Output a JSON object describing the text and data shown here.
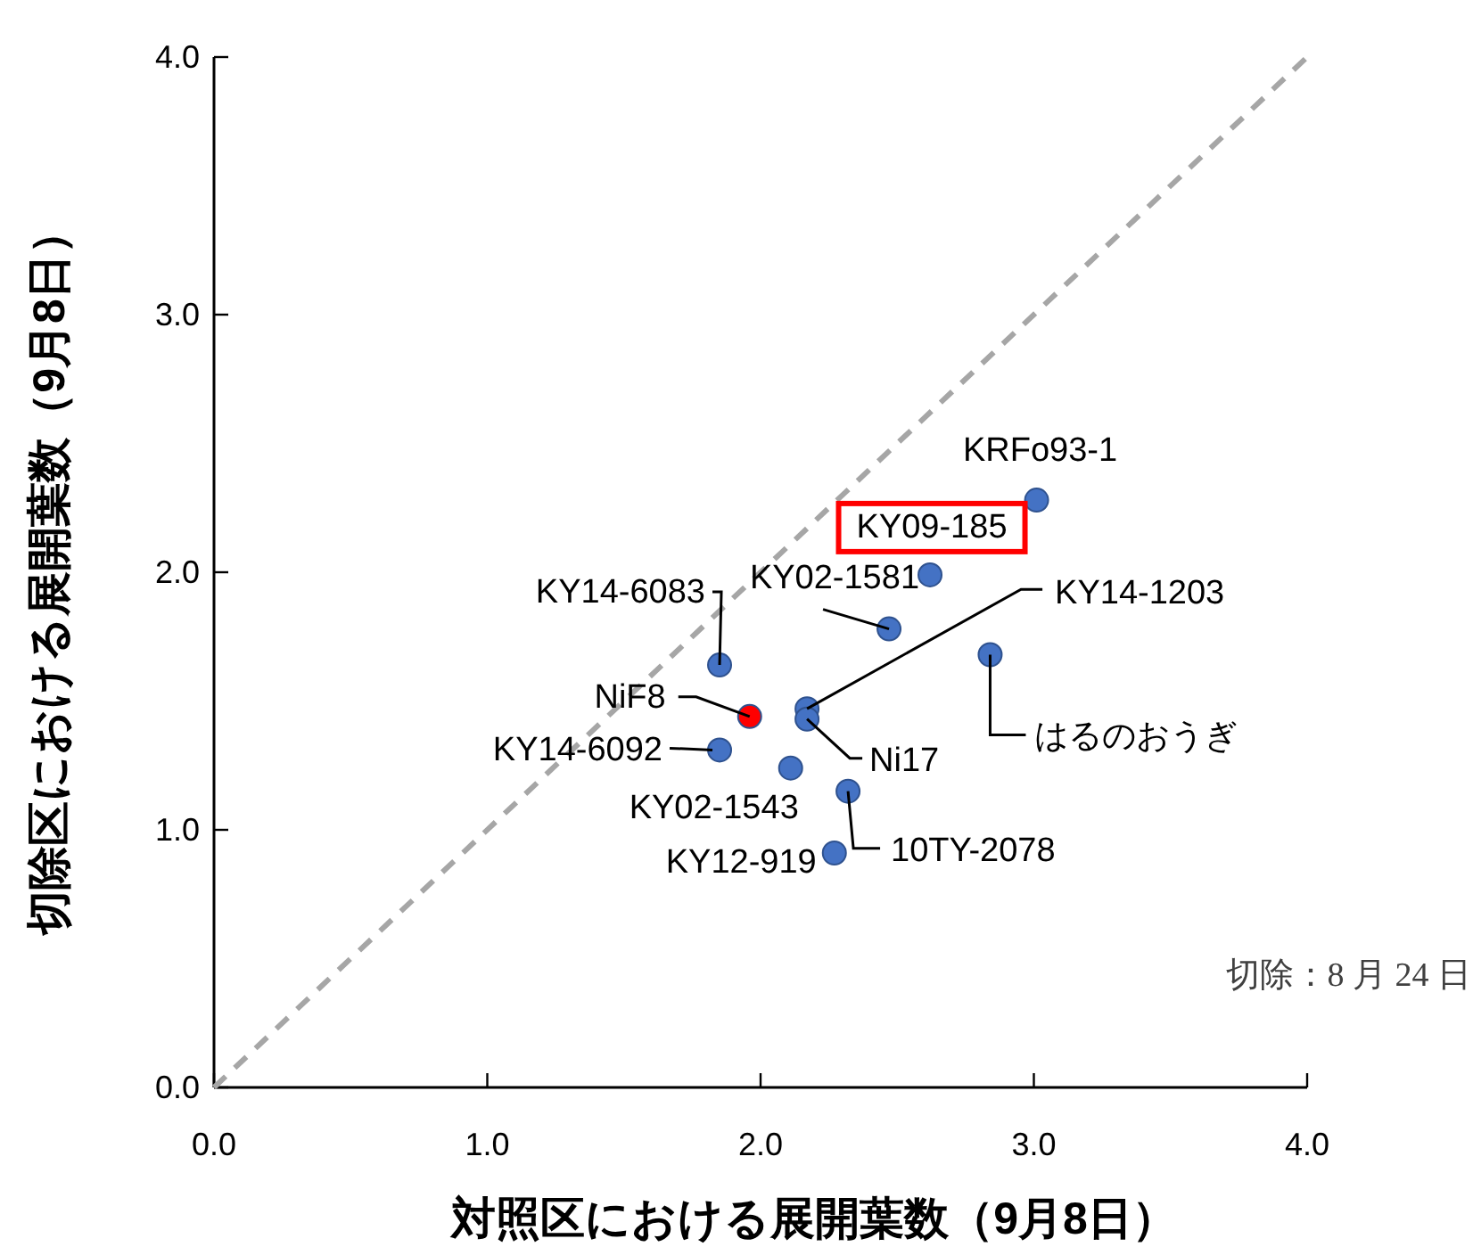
{
  "chart_data": {
    "type": "scatter",
    "xlabel": "対照区における展開葉数（9月8日）",
    "ylabel": "切除区における展開葉数（9月8日）",
    "xlim": [
      0,
      4
    ],
    "ylim": [
      0,
      4
    ],
    "xticks": [
      {
        "value": 0,
        "label": "0.0"
      },
      {
        "value": 1,
        "label": "1.0"
      },
      {
        "value": 2,
        "label": "2.0"
      },
      {
        "value": 3,
        "label": "3.0"
      },
      {
        "value": 4,
        "label": "4.0"
      }
    ],
    "yticks": [
      {
        "value": 0,
        "label": "0.0"
      },
      {
        "value": 1,
        "label": "1.0"
      },
      {
        "value": 2,
        "label": "2.0"
      },
      {
        "value": 3,
        "label": "3.0"
      },
      {
        "value": 4,
        "label": "4.0"
      }
    ],
    "grid": false,
    "marker": "circle",
    "series": [
      {
        "type": "line",
        "color": "#a6a6a6",
        "line_style": "dashed",
        "marker": "none",
        "x": [
          0,
          4
        ],
        "values": [
          0,
          4
        ]
      },
      {
        "type": "scatter",
        "x": [
          3.01,
          2.62,
          2.47,
          2.17,
          2.17,
          2.84,
          1.85,
          1.96,
          1.85,
          2.11,
          2.32,
          2.27
        ],
        "values": [
          2.28,
          1.99,
          1.78,
          1.47,
          1.43,
          1.68,
          1.64,
          1.44,
          1.31,
          1.24,
          1.15,
          0.91
        ],
        "colors": [
          "#4472c4",
          "#4472c4",
          "#4472c4",
          "#4472c4",
          "#4472c4",
          "#4472c4",
          "#4472c4",
          "#ff0000",
          "#4472c4",
          "#4472c4",
          "#4472c4",
          "#4472c4"
        ]
      }
    ],
    "annotations": [
      {
        "text": "KRFo93-1",
        "x": 3.01,
        "y": 2.28
      },
      {
        "text": "KY09-185",
        "x": 2.62,
        "y": 1.99
      },
      {
        "text": "KY02-1581",
        "x": 2.47,
        "y": 1.78
      },
      {
        "text": "KY14-1203",
        "x": 2.17,
        "y": 1.47
      },
      {
        "text": "Ni17",
        "x": 2.17,
        "y": 1.43
      },
      {
        "text": "はるのおうぎ",
        "x": 2.84,
        "y": 1.68
      },
      {
        "text": "KY14-6083",
        "x": 1.85,
        "y": 1.64
      },
      {
        "text": "NiF8",
        "x": 1.96,
        "y": 1.44
      },
      {
        "text": "KY14-6092",
        "x": 1.85,
        "y": 1.31
      },
      {
        "text": "KY02-1543",
        "x": 2.11,
        "y": 1.24
      },
      {
        "text": "10TY-2078",
        "x": 2.32,
        "y": 1.15
      },
      {
        "text": "KY12-919",
        "x": 2.27,
        "y": 0.91
      },
      "切除：8 月 24 日"
    ]
  }
}
